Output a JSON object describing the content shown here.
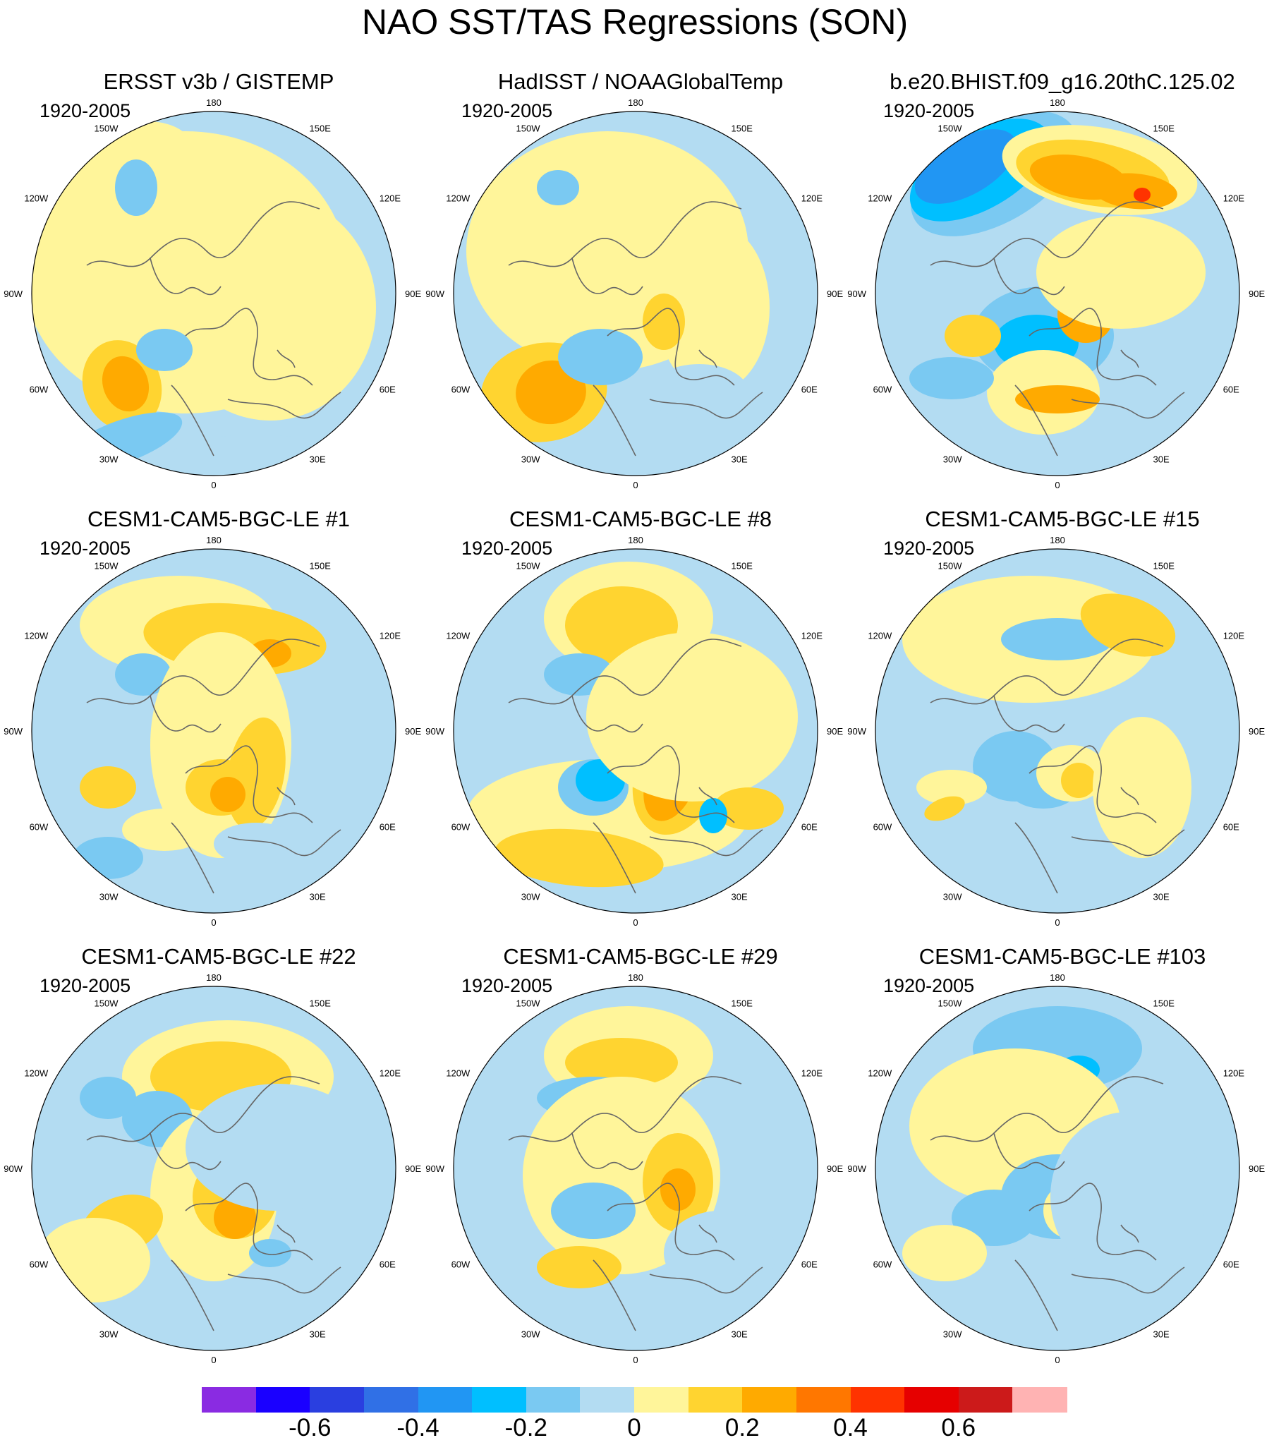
{
  "title": "NAO SST/TAS Regressions (SON)",
  "panels": [
    {
      "title": "ERSST v3b / GISTEMP",
      "period": "1920-2005",
      "pattern": "obs1"
    },
    {
      "title": "HadISST / NOAAGlobalTemp",
      "period": "1920-2005",
      "pattern": "obs2"
    },
    {
      "title": "b.e20.BHIST.f09_g16.20thC.125.02",
      "period": "1920-2005",
      "pattern": "model"
    },
    {
      "title": "CESM1-CAM5-BGC-LE #1",
      "period": "1920-2005",
      "pattern": "le1"
    },
    {
      "title": "CESM1-CAM5-BGC-LE #8",
      "period": "1920-2005",
      "pattern": "le8"
    },
    {
      "title": "CESM1-CAM5-BGC-LE #15",
      "period": "1920-2005",
      "pattern": "le15"
    },
    {
      "title": "CESM1-CAM5-BGC-LE #22",
      "period": "1920-2005",
      "pattern": "le22"
    },
    {
      "title": "CESM1-CAM5-BGC-LE #29",
      "period": "1920-2005",
      "pattern": "le29"
    },
    {
      "title": "CESM1-CAM5-BGC-LE #103",
      "period": "1920-2005",
      "pattern": "le103"
    }
  ],
  "longitude_labels": [
    "180",
    "150E",
    "120E",
    "90E",
    "60E",
    "30E",
    "0",
    "30W",
    "60W",
    "90W",
    "120W",
    "150W"
  ],
  "colorbar": {
    "colors": [
      "#8a2be2",
      "#1a00ff",
      "#2a3fe0",
      "#3070e6",
      "#2196f3",
      "#00bfff",
      "#7ac9f2",
      "#b3dcf2",
      "#fff59a",
      "#ffd430",
      "#ffaa00",
      "#ff7700",
      "#ff3300",
      "#e60000",
      "#cc1a1a",
      "#ffb3b3"
    ],
    "levels": [
      "-0.6",
      "-0.4",
      "-0.2",
      "0",
      "0.2",
      "0.4",
      "0.6"
    ]
  }
}
